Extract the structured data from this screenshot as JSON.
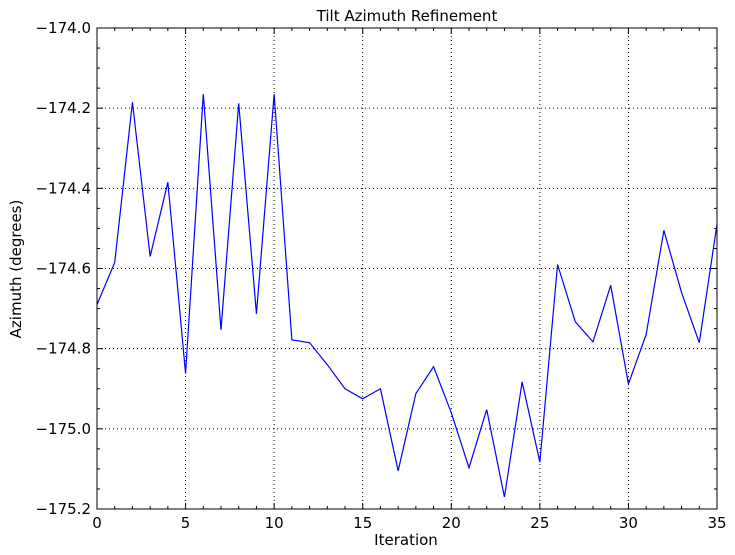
{
  "chart_data": {
    "type": "line",
    "title": "Tilt Azimuth Refinement",
    "xlabel": "Iteration",
    "ylabel": "Azimuth (degrees)",
    "xlim": [
      0,
      35
    ],
    "ylim": [
      -175.2,
      -174.0
    ],
    "xticks": [
      0,
      5,
      10,
      15,
      20,
      25,
      30,
      35
    ],
    "yticks": [
      -174.0,
      -174.2,
      -174.4,
      -174.6,
      -174.8,
      -175.0,
      -175.2
    ],
    "ytick_labels": [
      "−174.0",
      "−174.2",
      "−174.4",
      "−174.6",
      "−174.8",
      "−175.0",
      "−175.2"
    ],
    "grid": true,
    "line_color": "#0000ff",
    "series": [
      {
        "x": [
          0,
          1,
          2,
          3,
          4,
          5,
          6,
          7,
          8,
          9,
          10,
          11,
          12,
          13,
          14,
          15,
          16,
          17,
          18,
          19,
          20,
          21,
          22,
          23,
          24,
          25,
          26,
          27,
          28,
          29,
          30,
          31,
          32,
          33,
          34,
          35
        ],
        "values": [
          -174.69,
          -174.585,
          -174.185,
          -174.57,
          -174.385,
          -174.862,
          -174.165,
          -174.753,
          -174.188,
          -174.713,
          -174.165,
          -174.778,
          -174.785,
          -174.84,
          -174.9,
          -174.925,
          -174.9,
          -175.105,
          -174.912,
          -174.845,
          -174.96,
          -175.097,
          -174.952,
          -175.17,
          -174.883,
          -175.083,
          -174.59,
          -174.733,
          -174.783,
          -174.642,
          -174.888,
          -174.765,
          -174.505,
          -174.66,
          -174.785,
          -174.49
        ]
      }
    ]
  }
}
